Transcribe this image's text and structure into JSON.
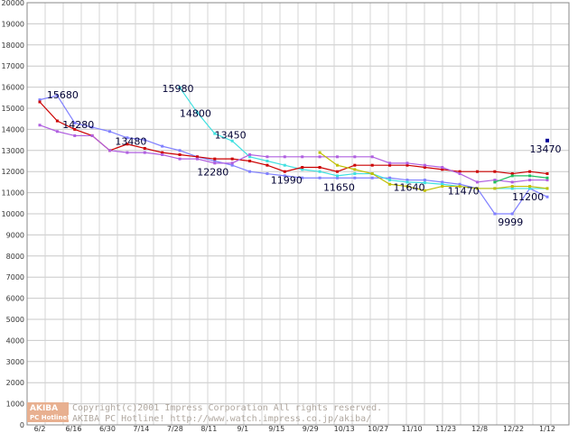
{
  "chart_data": {
    "type": "line",
    "title": "",
    "xlabel": "",
    "ylabel": "",
    "ylim": [
      0,
      20000
    ],
    "ytick_step": 1000,
    "grid": true,
    "x_tick_labels": [
      "6/2",
      "6/16",
      "6/30",
      "7/14",
      "7/28",
      "8/11",
      "9/1",
      "9/15",
      "9/29",
      "10/13",
      "10/27",
      "11/10",
      "11/23",
      "12/8",
      "12/22",
      "1/12"
    ],
    "series": [
      {
        "color": "#8080ff",
        "values": [
          [
            0,
            15400
          ],
          [
            1,
            15600
          ],
          [
            2,
            14300
          ],
          [
            3,
            14100
          ],
          [
            4,
            13900
          ],
          [
            5,
            13600
          ],
          [
            6,
            13500
          ],
          [
            7,
            13200
          ],
          [
            8,
            13000
          ],
          [
            9,
            12700
          ],
          [
            10,
            12500
          ],
          [
            11,
            12300
          ],
          [
            12,
            12000
          ],
          [
            13,
            11900
          ],
          [
            14,
            11800
          ],
          [
            15,
            11700
          ],
          [
            16,
            11700
          ],
          [
            17,
            11700
          ],
          [
            18,
            11700
          ],
          [
            19,
            11700
          ],
          [
            20,
            11700
          ],
          [
            21,
            11600
          ],
          [
            22,
            11600
          ],
          [
            23,
            11500
          ],
          [
            24,
            11400
          ],
          [
            25,
            11200
          ],
          [
            26,
            10000
          ],
          [
            27,
            10000
          ],
          [
            28,
            11200
          ],
          [
            29,
            10800
          ]
        ]
      },
      {
        "color": "#40e0e0",
        "values": [
          [
            8,
            15980
          ],
          [
            9,
            14800
          ],
          [
            10,
            13800
          ],
          [
            11,
            13450
          ],
          [
            12,
            12700
          ],
          [
            13,
            12500
          ],
          [
            14,
            12300
          ],
          [
            15,
            12100
          ],
          [
            16,
            12000
          ],
          [
            17,
            11800
          ],
          [
            18,
            11900
          ],
          [
            19,
            11900
          ],
          [
            20,
            11600
          ],
          [
            21,
            11500
          ],
          [
            22,
            11470
          ],
          [
            23,
            11400
          ],
          [
            24,
            11300
          ],
          [
            25,
            11200
          ],
          [
            26,
            11200
          ],
          [
            27,
            11200
          ],
          [
            28,
            11200
          ],
          [
            29,
            11200
          ]
        ]
      },
      {
        "color": "#cc0000",
        "values": [
          [
            0,
            15300
          ],
          [
            1,
            14400
          ],
          [
            2,
            14000
          ],
          [
            3,
            13700
          ],
          [
            4,
            13000
          ],
          [
            5,
            13300
          ],
          [
            6,
            13100
          ],
          [
            7,
            12900
          ],
          [
            8,
            12800
          ],
          [
            9,
            12700
          ],
          [
            10,
            12600
          ],
          [
            11,
            12600
          ],
          [
            12,
            12500
          ],
          [
            13,
            12300
          ],
          [
            14,
            12000
          ],
          [
            15,
            12200
          ],
          [
            16,
            12200
          ],
          [
            17,
            12000
          ],
          [
            18,
            12300
          ],
          [
            19,
            12300
          ],
          [
            20,
            12300
          ],
          [
            21,
            12300
          ],
          [
            22,
            12200
          ],
          [
            23,
            12100
          ],
          [
            24,
            12000
          ],
          [
            25,
            12000
          ],
          [
            26,
            12000
          ],
          [
            27,
            11900
          ],
          [
            28,
            12000
          ],
          [
            29,
            11900
          ]
        ]
      },
      {
        "color": "#b060e0",
        "values": [
          [
            0,
            14200
          ],
          [
            1,
            13900
          ],
          [
            2,
            13700
          ],
          [
            3,
            13700
          ],
          [
            4,
            13000
          ],
          [
            5,
            12900
          ],
          [
            6,
            12900
          ],
          [
            7,
            12800
          ],
          [
            8,
            12600
          ],
          [
            9,
            12600
          ],
          [
            10,
            12400
          ],
          [
            11,
            12400
          ],
          [
            12,
            12800
          ],
          [
            13,
            12700
          ],
          [
            14,
            12700
          ],
          [
            15,
            12700
          ],
          [
            16,
            12700
          ],
          [
            17,
            12700
          ],
          [
            18,
            12700
          ],
          [
            19,
            12700
          ],
          [
            20,
            12400
          ],
          [
            21,
            12400
          ],
          [
            22,
            12300
          ],
          [
            23,
            12200
          ],
          [
            24,
            11900
          ],
          [
            25,
            11500
          ],
          [
            26,
            11600
          ],
          [
            27,
            11500
          ],
          [
            28,
            11600
          ],
          [
            29,
            11600
          ]
        ]
      },
      {
        "color": "#c0c000",
        "values": [
          [
            16,
            12900
          ],
          [
            17,
            12300
          ],
          [
            18,
            12100
          ],
          [
            19,
            11900
          ],
          [
            20,
            11400
          ],
          [
            21,
            11300
          ],
          [
            22,
            11100
          ],
          [
            23,
            11300
          ],
          [
            24,
            11300
          ],
          [
            25,
            11200
          ],
          [
            26,
            11200
          ],
          [
            27,
            11300
          ],
          [
            28,
            11300
          ],
          [
            29,
            11200
          ]
        ]
      },
      {
        "color": "#20c060",
        "values": [
          [
            26,
            11500
          ],
          [
            27,
            11800
          ],
          [
            28,
            11800
          ],
          [
            29,
            11700
          ]
        ]
      }
    ],
    "single_points": [
      {
        "color": "#000099",
        "x": 29,
        "value": 13470
      }
    ],
    "data_labels": [
      {
        "text": "15680",
        "x": 1,
        "value": 15680
      },
      {
        "text": "14280",
        "x": 2,
        "value": 14280
      },
      {
        "text": "13480",
        "x": 5,
        "value": 13480
      },
      {
        "text": "15980",
        "x": 8,
        "value": 15980
      },
      {
        "text": "14800",
        "x": 9,
        "value": 14800
      },
      {
        "text": "12280",
        "x": 10,
        "value": 12280
      },
      {
        "text": "13450",
        "x": 11,
        "value": 13450
      },
      {
        "text": "11990",
        "x": 14,
        "value": 11990
      },
      {
        "text": "11650",
        "x": 17,
        "value": 11650
      },
      {
        "text": "11640",
        "x": 21,
        "value": 11640
      },
      {
        "text": "11470",
        "x": 24,
        "value": 11470
      },
      {
        "text": "9999",
        "x": 27,
        "value": 9999
      },
      {
        "text": "11200",
        "x": 28,
        "value": 11200
      },
      {
        "text": "13470",
        "x": 29,
        "value": 13470
      }
    ]
  },
  "watermark": {
    "logo_top": "AKIBA",
    "logo_bottom": "PC Hotline!",
    "line1": "Copyright(c)2001 Impress Corporation All rights reserved.",
    "line2": "AKIBA PC Hotline!  http://www.watch.impress.co.jp/akiba/"
  }
}
